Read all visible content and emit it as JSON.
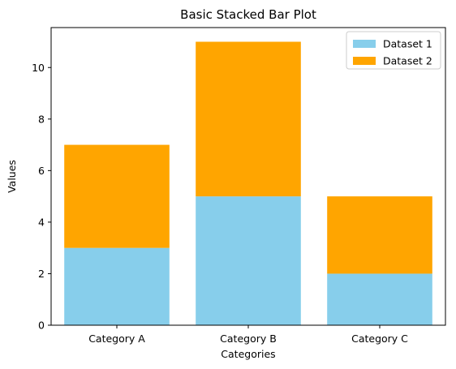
{
  "chart_data": {
    "type": "bar",
    "stacked": true,
    "title": "Basic Stacked Bar Plot",
    "xlabel": "Categories",
    "ylabel": "Values",
    "categories": [
      "Category A",
      "Category B",
      "Category C"
    ],
    "series": [
      {
        "name": "Dataset 1",
        "values": [
          3,
          5,
          2
        ],
        "color": "#87ceeb"
      },
      {
        "name": "Dataset 2",
        "values": [
          4,
          6,
          3
        ],
        "color": "#ffa500"
      }
    ],
    "ylim": [
      0,
      11.55
    ],
    "yticks": [
      0,
      2,
      4,
      6,
      8,
      10
    ],
    "grid": false,
    "legend_position": "top-right"
  }
}
